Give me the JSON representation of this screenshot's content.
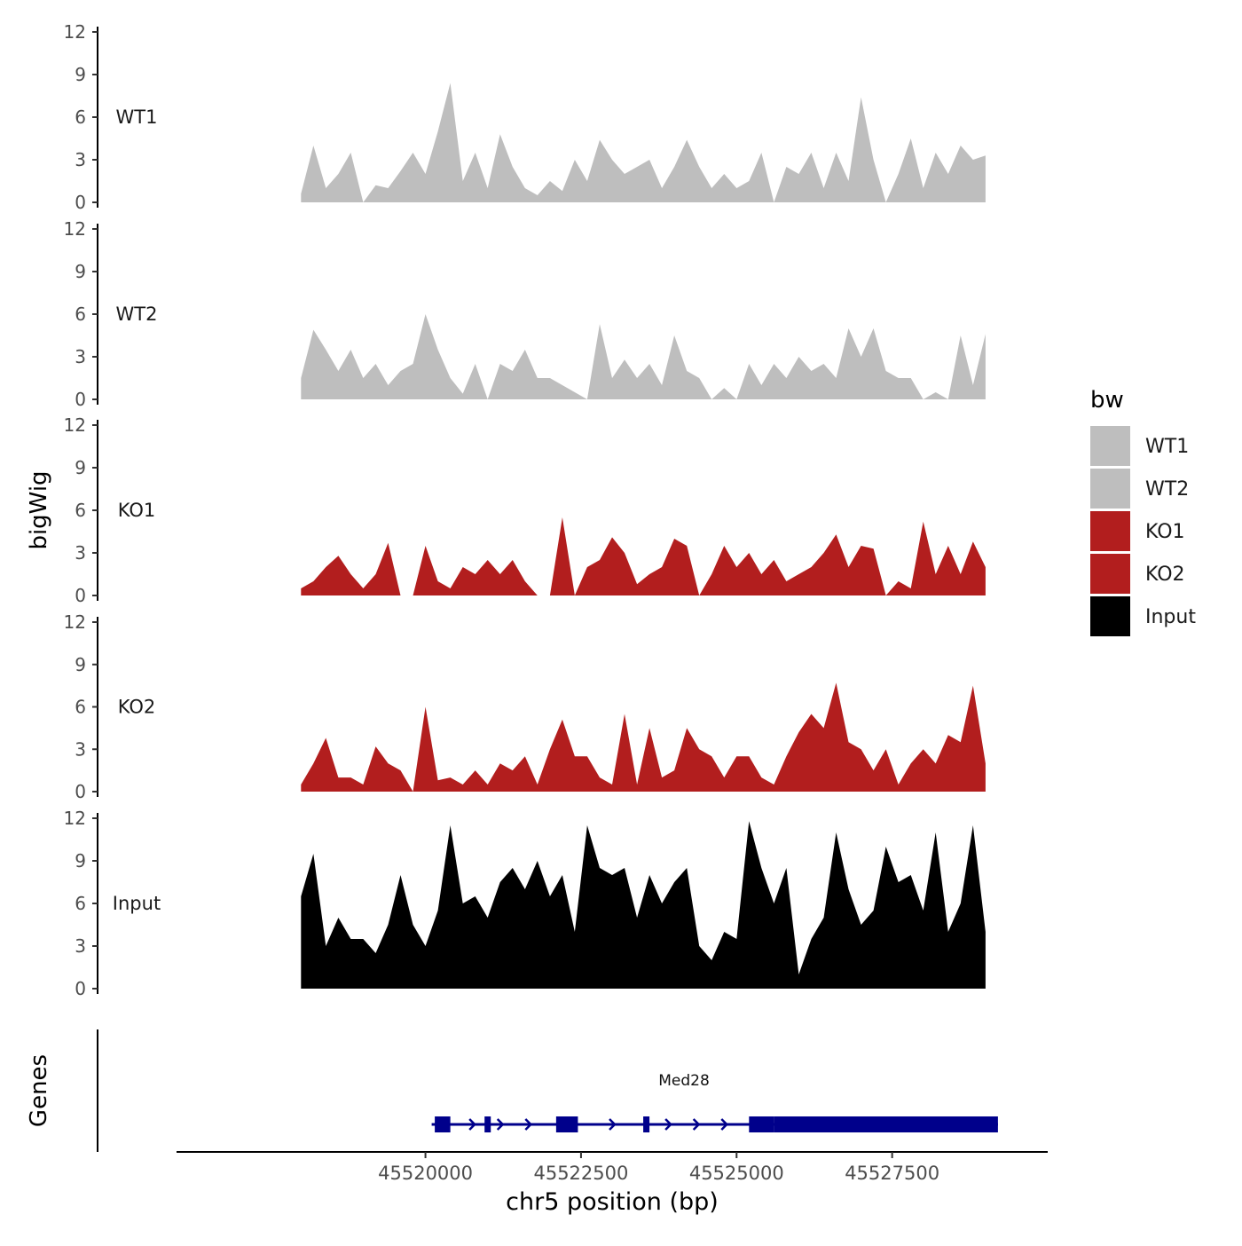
{
  "chart_data": {
    "type": "area",
    "title": "",
    "ylabel": "bigWig",
    "xlabel": "chr5 position (bp)",
    "xlim": [
      45516000,
      45530000
    ],
    "ylim": [
      0,
      12
    ],
    "y_ticks": [
      0,
      3,
      6,
      9,
      12
    ],
    "y_tick_labels": [
      "0",
      "3",
      "6",
      "9",
      "12"
    ],
    "x_ticks": [
      45520000,
      45522500,
      45525000,
      45527500
    ],
    "x_tick_labels": [
      "45520000",
      "45522500",
      "45525000",
      "45527500"
    ],
    "legend": {
      "title": "bw",
      "position": "right",
      "entries": [
        {
          "name": "WT1",
          "color": "#bebebe"
        },
        {
          "name": "WT2",
          "color": "#bebebe"
        },
        {
          "name": "KO1",
          "color": "#b21e1e"
        },
        {
          "name": "KO2",
          "color": "#b21e1e"
        },
        {
          "name": "Input",
          "color": "#000000"
        }
      ]
    },
    "series": [
      {
        "name": "WT1",
        "color": "#bebebe",
        "x": [
          45518000,
          45518200,
          45518400,
          45518600,
          45518800,
          45519000,
          45519200,
          45519400,
          45519600,
          45519800,
          45520000,
          45520200,
          45520400,
          45520600,
          45520800,
          45521000,
          45521200,
          45521400,
          45521600,
          45521800,
          45522000,
          45522200,
          45522400,
          45522600,
          45522800,
          45523000,
          45523200,
          45523400,
          45523600,
          45523800,
          45524000,
          45524200,
          45524400,
          45524600,
          45524800,
          45525000,
          45525200,
          45525400,
          45525600,
          45525800,
          45526000,
          45526200,
          45526400,
          45526600,
          45526800,
          45527000,
          45527200,
          45527400,
          45527600,
          45527800,
          45528000,
          45528200,
          45528400,
          45528600,
          45528800,
          45529000
        ],
        "values": [
          0.6,
          4.0,
          1.0,
          2.0,
          3.5,
          0.0,
          1.2,
          1.0,
          2.2,
          3.5,
          2.0,
          5.0,
          8.4,
          1.5,
          3.5,
          1.0,
          4.8,
          2.5,
          1.0,
          0.5,
          1.5,
          0.8,
          3.0,
          1.5,
          4.4,
          3.0,
          2.0,
          2.5,
          3.0,
          1.0,
          2.5,
          4.4,
          2.5,
          1.0,
          2.0,
          1.0,
          1.5,
          3.5,
          0.0,
          2.5,
          2.0,
          3.5,
          1.0,
          3.5,
          1.5,
          7.4,
          3.0,
          0.0,
          2.0,
          4.5,
          1.0,
          3.5,
          2.0,
          4.0,
          3.0,
          3.3
        ]
      },
      {
        "name": "WT2",
        "color": "#bebebe",
        "x": [
          45518000,
          45518200,
          45518400,
          45518600,
          45518800,
          45519000,
          45519200,
          45519400,
          45519600,
          45519800,
          45520000,
          45520200,
          45520400,
          45520600,
          45520800,
          45521000,
          45521200,
          45521400,
          45521600,
          45521800,
          45522000,
          45522200,
          45522400,
          45522600,
          45522800,
          45523000,
          45523200,
          45523400,
          45523600,
          45523800,
          45524000,
          45524200,
          45524400,
          45524600,
          45524800,
          45525000,
          45525200,
          45525400,
          45525600,
          45525800,
          45526000,
          45526200,
          45526400,
          45526600,
          45526800,
          45527000,
          45527200,
          45527400,
          45527600,
          45527800,
          45528000,
          45528200,
          45528400,
          45528600,
          45528800,
          45529000
        ],
        "values": [
          1.5,
          4.9,
          3.5,
          2.0,
          3.5,
          1.5,
          2.5,
          1.0,
          2.0,
          2.5,
          6.0,
          3.5,
          1.5,
          0.4,
          2.5,
          0.0,
          2.5,
          2.0,
          3.5,
          1.5,
          1.5,
          1.0,
          0.5,
          0.0,
          5.3,
          1.5,
          2.8,
          1.5,
          2.5,
          1.0,
          4.5,
          2.0,
          1.5,
          0.0,
          0.8,
          0.0,
          2.5,
          1.0,
          2.5,
          1.5,
          3.0,
          2.0,
          2.5,
          1.5,
          5.0,
          3.0,
          5.0,
          2.0,
          1.5,
          1.5,
          0.0,
          0.5,
          0.0,
          4.5,
          1.0,
          4.6
        ]
      },
      {
        "name": "KO1",
        "color": "#b21e1e",
        "x": [
          45518000,
          45518200,
          45518400,
          45518600,
          45518800,
          45519000,
          45519200,
          45519400,
          45519600,
          45519800,
          45520000,
          45520200,
          45520400,
          45520600,
          45520800,
          45521000,
          45521200,
          45521400,
          45521600,
          45521800,
          45522000,
          45522200,
          45522400,
          45522600,
          45522800,
          45523000,
          45523200,
          45523400,
          45523600,
          45523800,
          45524000,
          45524200,
          45524400,
          45524600,
          45524800,
          45525000,
          45525200,
          45525400,
          45525600,
          45525800,
          45526000,
          45526200,
          45526400,
          45526600,
          45526800,
          45527000,
          45527200,
          45527400,
          45527600,
          45527800,
          45528000,
          45528200,
          45528400,
          45528600,
          45528800,
          45529000
        ],
        "values": [
          0.5,
          1.0,
          2.0,
          2.8,
          1.5,
          0.5,
          1.5,
          3.7,
          0.0,
          0.0,
          3.5,
          1.0,
          0.5,
          2.0,
          1.5,
          2.5,
          1.5,
          2.5,
          1.0,
          0.0,
          0.0,
          5.5,
          0.0,
          2.0,
          2.5,
          4.1,
          3.0,
          0.8,
          1.5,
          2.0,
          4.0,
          3.5,
          0.0,
          1.5,
          3.5,
          2.0,
          3.0,
          1.5,
          2.5,
          1.0,
          1.5,
          2.0,
          3.0,
          4.3,
          2.0,
          3.5,
          3.3,
          0.0,
          1.0,
          0.5,
          5.2,
          1.5,
          3.5,
          1.5,
          3.8,
          2.0
        ]
      },
      {
        "name": "KO2",
        "color": "#b21e1e",
        "x": [
          45518000,
          45518200,
          45518400,
          45518600,
          45518800,
          45519000,
          45519200,
          45519400,
          45519600,
          45519800,
          45520000,
          45520200,
          45520400,
          45520600,
          45520800,
          45521000,
          45521200,
          45521400,
          45521600,
          45521800,
          45522000,
          45522200,
          45522400,
          45522600,
          45522800,
          45523000,
          45523200,
          45523400,
          45523600,
          45523800,
          45524000,
          45524200,
          45524400,
          45524600,
          45524800,
          45525000,
          45525200,
          45525400,
          45525600,
          45525800,
          45526000,
          45526200,
          45526400,
          45526600,
          45526800,
          45527000,
          45527200,
          45527400,
          45527600,
          45527800,
          45528000,
          45528200,
          45528400,
          45528600,
          45528800,
          45529000
        ],
        "values": [
          0.5,
          2.0,
          3.8,
          1.0,
          1.0,
          0.5,
          3.2,
          2.0,
          1.5,
          0.0,
          6.0,
          0.8,
          1.0,
          0.5,
          1.5,
          0.5,
          2.0,
          1.5,
          2.5,
          0.5,
          3.0,
          5.1,
          2.5,
          2.5,
          1.0,
          0.5,
          5.5,
          0.5,
          4.5,
          1.0,
          1.5,
          4.5,
          3.0,
          2.5,
          1.0,
          2.5,
          2.5,
          1.0,
          0.5,
          2.5,
          4.2,
          5.5,
          4.5,
          7.7,
          3.5,
          3.0,
          1.5,
          3.0,
          0.5,
          2.0,
          3.0,
          2.0,
          4.0,
          3.5,
          7.5,
          2.0
        ]
      },
      {
        "name": "Input",
        "color": "#000000",
        "x": [
          45518000,
          45518200,
          45518400,
          45518600,
          45518800,
          45519000,
          45519200,
          45519400,
          45519600,
          45519800,
          45520000,
          45520200,
          45520400,
          45520600,
          45520800,
          45521000,
          45521200,
          45521400,
          45521600,
          45521800,
          45522000,
          45522200,
          45522400,
          45522600,
          45522800,
          45523000,
          45523200,
          45523400,
          45523600,
          45523800,
          45524000,
          45524200,
          45524400,
          45524600,
          45524800,
          45525000,
          45525200,
          45525400,
          45525600,
          45525800,
          45526000,
          45526200,
          45526400,
          45526600,
          45526800,
          45527000,
          45527200,
          45527400,
          45527600,
          45527800,
          45528000,
          45528200,
          45528400,
          45528600,
          45528800,
          45529000
        ],
        "values": [
          6.5,
          9.5,
          3.0,
          5.0,
          3.5,
          3.5,
          2.5,
          4.5,
          8.0,
          4.5,
          3.0,
          5.5,
          11.5,
          6.0,
          6.5,
          5.0,
          7.5,
          8.5,
          7.0,
          9.0,
          6.5,
          8.0,
          4.0,
          11.5,
          8.5,
          8.0,
          8.5,
          5.0,
          8.0,
          6.0,
          7.5,
          8.5,
          3.0,
          2.0,
          4.0,
          3.5,
          11.8,
          8.5,
          6.0,
          8.5,
          1.0,
          3.5,
          5.0,
          11.0,
          7.0,
          4.5,
          5.5,
          10.0,
          7.5,
          8.0,
          5.5,
          11.0,
          4.0,
          6.0,
          11.5,
          4.0
        ]
      }
    ],
    "genes_track": {
      "label": "Genes",
      "gene_name": "Med28",
      "strand": "+",
      "start": 45520100,
      "end": 45529200,
      "exons": [
        [
          45520150,
          45520400
        ],
        [
          45520950,
          45521050
        ],
        [
          45522100,
          45522450
        ],
        [
          45523500,
          45523600
        ],
        [
          45525200,
          45525600
        ],
        [
          45525600,
          45529200
        ]
      ]
    }
  }
}
